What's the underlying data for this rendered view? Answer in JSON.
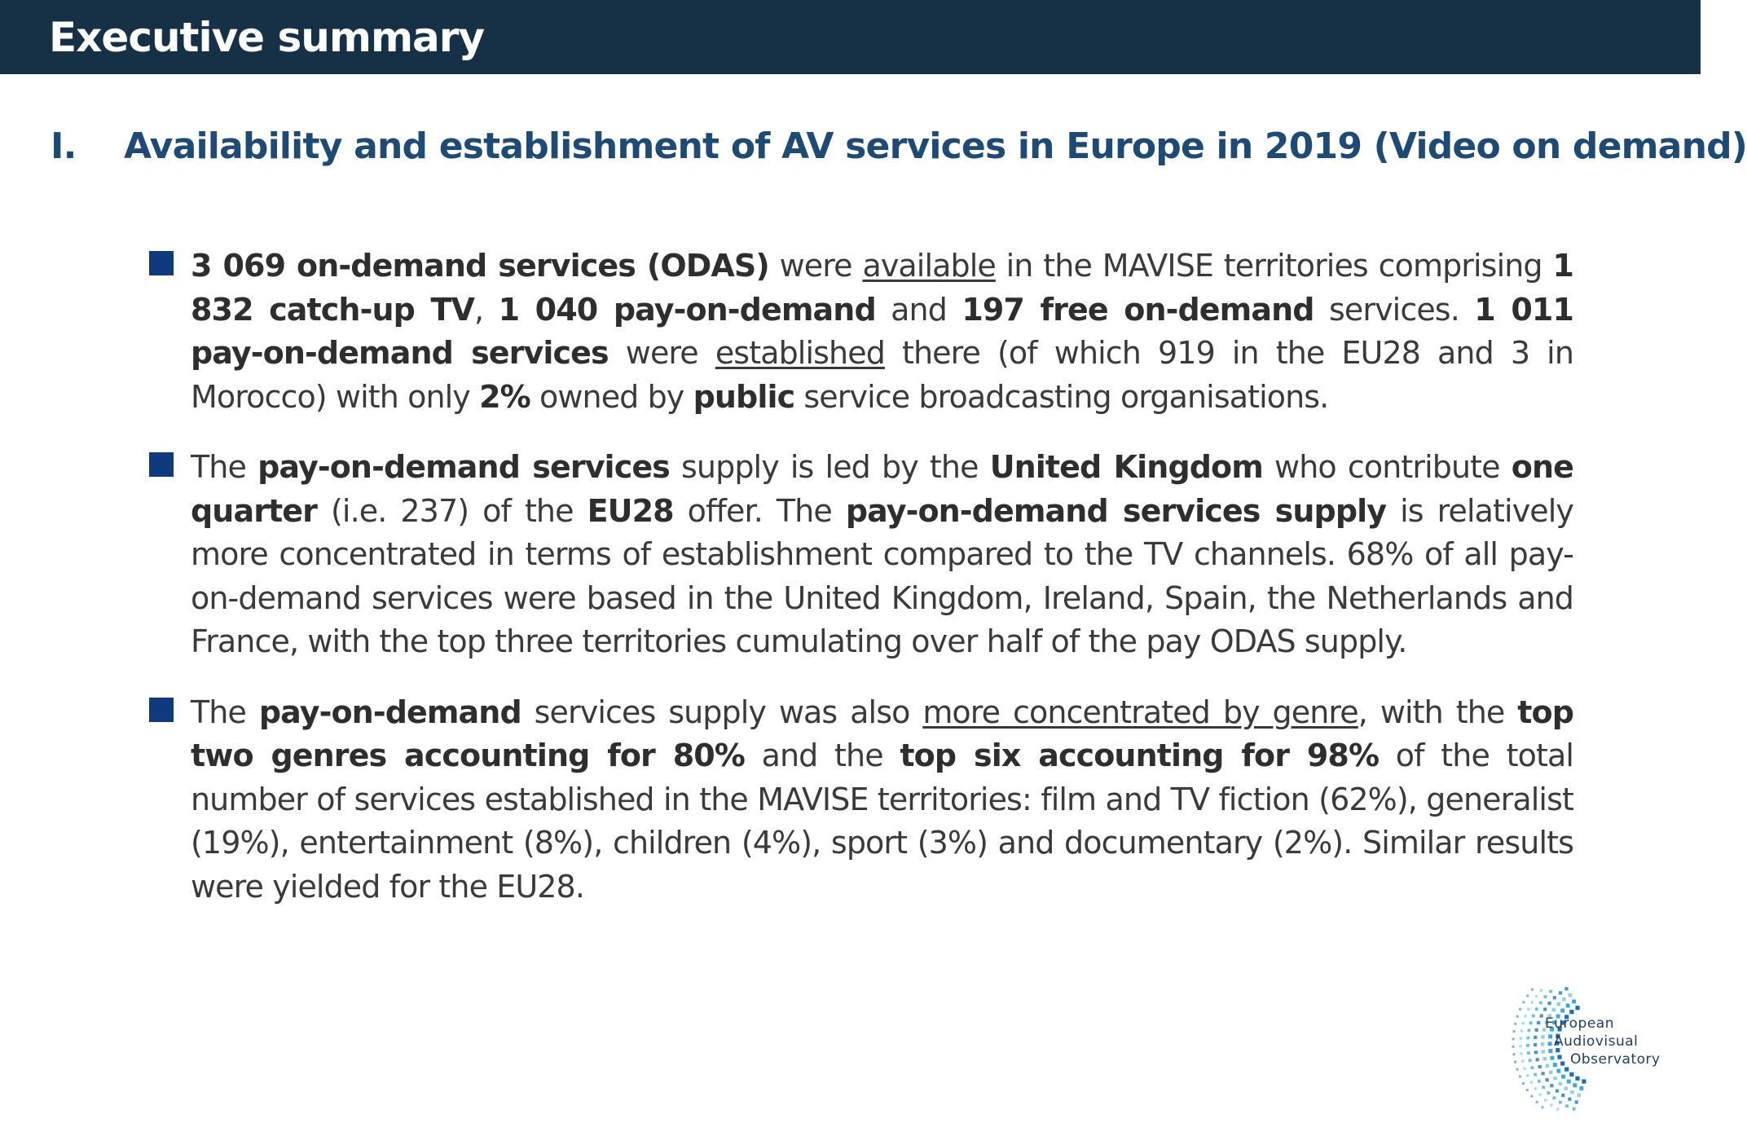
{
  "header": {
    "title": "Executive summary"
  },
  "section": {
    "number": "I.",
    "title": "Availability and establishment of AV services in Europe in 2019 (Video on demand)"
  },
  "bullets": [
    {
      "segments": [
        {
          "text": "3 069 on-demand services (ODAS)",
          "style": "bold"
        },
        {
          "text": " were ",
          "style": "normal"
        },
        {
          "text": "available",
          "style": "underline"
        },
        {
          "text": " in the MAVISE territories comprising ",
          "style": "normal"
        },
        {
          "text": "1 832 catch-up TV",
          "style": "bold"
        },
        {
          "text": ", ",
          "style": "normal"
        },
        {
          "text": "1 040 pay-on-demand",
          "style": "bold"
        },
        {
          "text": " and ",
          "style": "normal"
        },
        {
          "text": "197 free on-demand",
          "style": "bold"
        },
        {
          "text": " services. ",
          "style": "normal"
        },
        {
          "text": "1 011 pay-on-demand services",
          "style": "bold"
        },
        {
          "text": " were ",
          "style": "normal"
        },
        {
          "text": "established",
          "style": "underline"
        },
        {
          "text": " there (of which 919 in the EU28 and 3 in Morocco) with only ",
          "style": "normal"
        },
        {
          "text": "2%",
          "style": "bold"
        },
        {
          "text": " owned by ",
          "style": "normal"
        },
        {
          "text": "public",
          "style": "bold"
        },
        {
          "text": " service broadcasting organisations.",
          "style": "normal"
        }
      ]
    },
    {
      "segments": [
        {
          "text": "The ",
          "style": "normal"
        },
        {
          "text": "pay-on-demand services",
          "style": "bold"
        },
        {
          "text": " supply is led by the ",
          "style": "normal"
        },
        {
          "text": "United Kingdom",
          "style": "bold"
        },
        {
          "text": " who contribute ",
          "style": "normal"
        },
        {
          "text": "one quarter",
          "style": "bold"
        },
        {
          "text": " (i.e. 237) of the ",
          "style": "normal"
        },
        {
          "text": "EU28",
          "style": "bold"
        },
        {
          "text": " offer. The ",
          "style": "normal"
        },
        {
          "text": "pay-on-demand services supply",
          "style": "bold"
        },
        {
          "text": " is relatively more concentrated in terms of establishment compared to the TV channels. 68% of all pay-on-demand services were based in the United Kingdom, Ireland, Spain, the Netherlands and France, with the top three territories cumulating over half of the pay ODAS supply.",
          "style": "normal"
        }
      ]
    },
    {
      "segments": [
        {
          "text": "The ",
          "style": "normal"
        },
        {
          "text": "pay-on-demand",
          "style": "bold"
        },
        {
          "text": " services supply was also ",
          "style": "normal"
        },
        {
          "text": "more concentrated by genre",
          "style": "underline"
        },
        {
          "text": ", with the ",
          "style": "normal"
        },
        {
          "text": "top two genres accounting for 80%",
          "style": "bold"
        },
        {
          "text": " and the ",
          "style": "normal"
        },
        {
          "text": "top six accounting for 98%",
          "style": "bold"
        },
        {
          "text": " of the total number of services established in the MAVISE territories: film and TV fiction (62%), generalist (19%), entertainment (8%), children (4%), sport (3%) and documentary (2%). Similar results were yielded for the EU28.",
          "style": "normal"
        }
      ]
    }
  ],
  "logo": {
    "lines": [
      "European",
      "Audiovisual",
      "Observatory"
    ],
    "icon": "observatory-dish-logo",
    "colors": [
      "#1b6fb3",
      "#2a9fd6",
      "#7cc7ea"
    ]
  },
  "colors": {
    "header_bg": "#163046",
    "heading": "#1e4a73",
    "bullet_marker": "#0f3a7c"
  }
}
